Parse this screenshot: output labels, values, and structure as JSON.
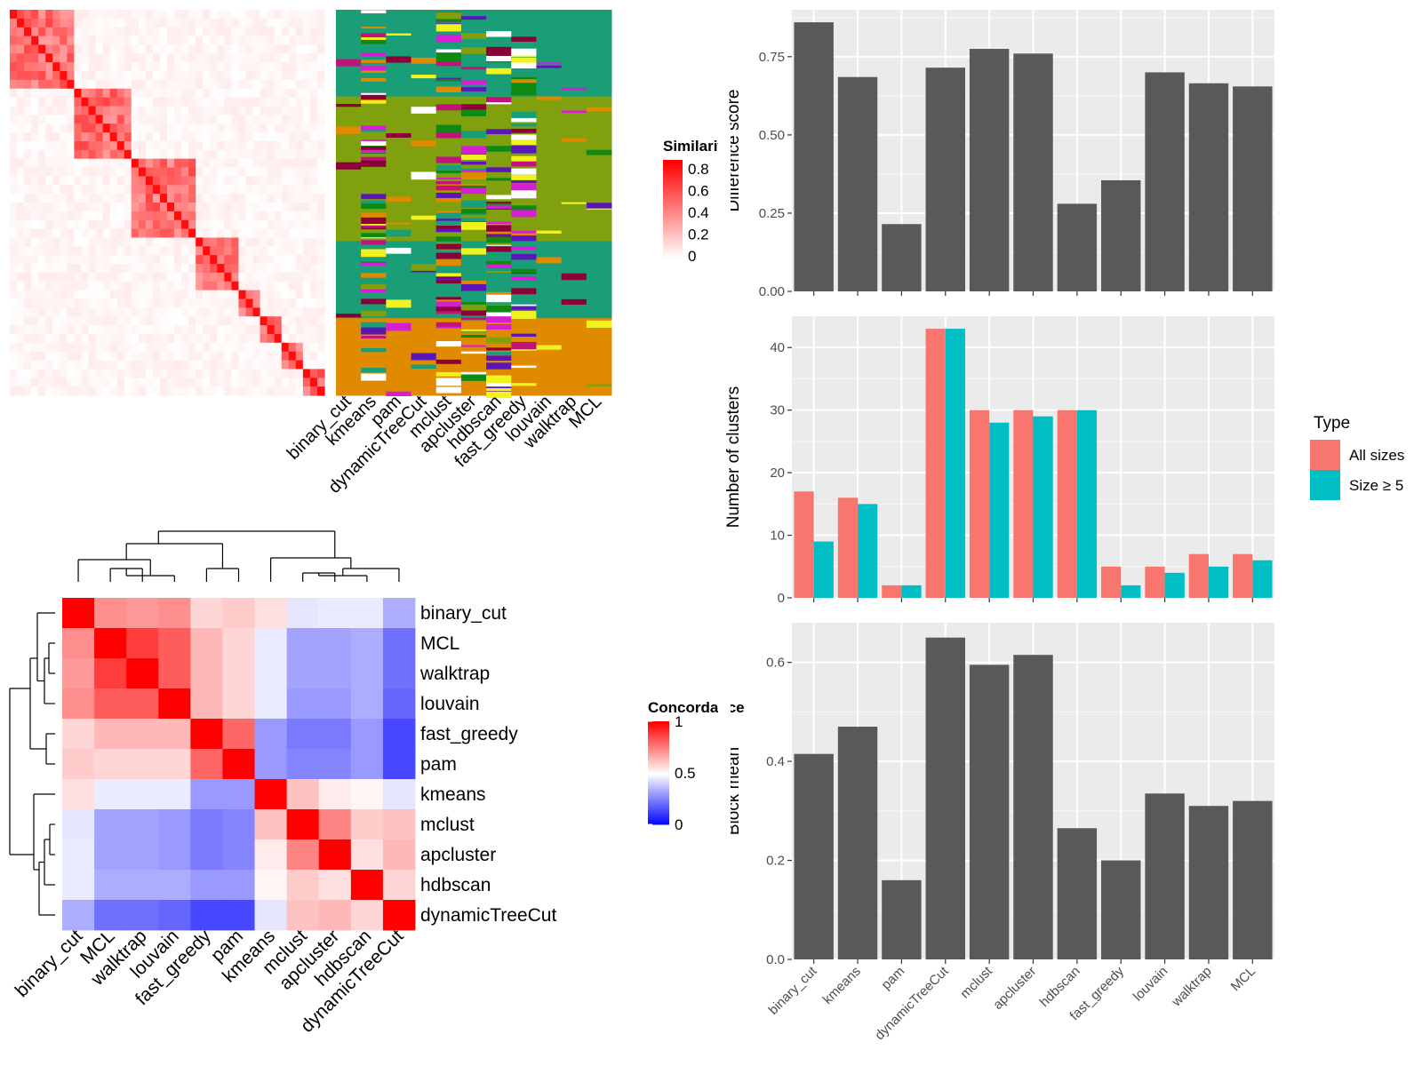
{
  "chart_data": [
    {
      "type": "heatmap",
      "legend_title": "Similarity",
      "legend_ticks": [
        "0",
        "0.2",
        "0.4",
        "0.6",
        "0.8"
      ],
      "columns": [
        "binary_cut",
        "kmeans",
        "pam",
        "dynamicTreeCut",
        "mclust",
        "apcluster",
        "hdbscan",
        "fast_greedy",
        "louvain",
        "walktrap",
        "MCL"
      ]
    },
    {
      "type": "heatmap",
      "legend_title": "Concordance",
      "legend_ticks": [
        "0",
        "0.5",
        "1"
      ],
      "rows": [
        "binary_cut",
        "MCL",
        "walktrap",
        "louvain",
        "fast_greedy",
        "pam",
        "kmeans",
        "mclust",
        "apcluster",
        "hdbscan",
        "dynamicTreeCut"
      ],
      "columns": [
        "binary_cut",
        "MCL",
        "walktrap",
        "louvain",
        "fast_greedy",
        "pam",
        "kmeans",
        "mclust",
        "apcluster",
        "hdbscan",
        "dynamicTreeCut"
      ],
      "values": [
        [
          1.0,
          0.72,
          0.7,
          0.72,
          0.58,
          0.6,
          0.56,
          0.45,
          0.46,
          0.46,
          0.34
        ],
        [
          0.72,
          1.0,
          0.88,
          0.82,
          0.64,
          0.58,
          0.46,
          0.32,
          0.32,
          0.34,
          0.22
        ],
        [
          0.7,
          0.88,
          1.0,
          0.82,
          0.64,
          0.58,
          0.46,
          0.32,
          0.32,
          0.34,
          0.22
        ],
        [
          0.72,
          0.82,
          0.82,
          1.0,
          0.64,
          0.58,
          0.46,
          0.3,
          0.3,
          0.34,
          0.2
        ],
        [
          0.58,
          0.64,
          0.64,
          0.64,
          1.0,
          0.8,
          0.3,
          0.24,
          0.24,
          0.3,
          0.14
        ],
        [
          0.6,
          0.58,
          0.58,
          0.58,
          0.8,
          1.0,
          0.3,
          0.26,
          0.26,
          0.3,
          0.14
        ],
        [
          0.56,
          0.46,
          0.46,
          0.46,
          0.3,
          0.3,
          1.0,
          0.62,
          0.54,
          0.52,
          0.45
        ],
        [
          0.45,
          0.32,
          0.32,
          0.3,
          0.24,
          0.26,
          0.62,
          1.0,
          0.74,
          0.6,
          0.62
        ],
        [
          0.46,
          0.32,
          0.32,
          0.3,
          0.24,
          0.26,
          0.54,
          0.74,
          1.0,
          0.56,
          0.64
        ],
        [
          0.46,
          0.34,
          0.34,
          0.34,
          0.3,
          0.3,
          0.52,
          0.6,
          0.56,
          1.0,
          0.58
        ],
        [
          0.34,
          0.22,
          0.22,
          0.2,
          0.14,
          0.14,
          0.45,
          0.62,
          0.64,
          0.58,
          1.0
        ]
      ]
    },
    {
      "type": "bar",
      "ylabel": "Difference score",
      "categories": [
        "binary_cut",
        "kmeans",
        "pam",
        "dynamicTreeCut",
        "mclust",
        "apcluster",
        "hdbscan",
        "fast_greedy",
        "louvain",
        "walktrap",
        "MCL"
      ],
      "values": [
        0.86,
        0.685,
        0.215,
        0.715,
        0.775,
        0.76,
        0.28,
        0.355,
        0.7,
        0.665,
        0.655
      ],
      "ylim": [
        0,
        0.9
      ],
      "yticks": [
        0,
        0.25,
        0.5,
        0.75
      ],
      "ytick_labels": [
        "0.00",
        "0.25",
        "0.50",
        "0.75"
      ],
      "bar_color": "#595959"
    },
    {
      "type": "bar",
      "ylabel": "Number of clusters",
      "categories": [
        "binary_cut",
        "kmeans",
        "pam",
        "dynamicTreeCut",
        "mclust",
        "apcluster",
        "hdbscan",
        "fast_greedy",
        "louvain",
        "walktrap",
        "MCL"
      ],
      "series": [
        {
          "name": "All sizes",
          "color": "#F8766D",
          "values": [
            17,
            16,
            2,
            43,
            30,
            30,
            30,
            5,
            5,
            7,
            7
          ]
        },
        {
          "name": "Size ≥ 5",
          "color": "#00BFC4",
          "values": [
            9,
            15,
            2,
            43,
            28,
            29,
            30,
            2,
            4,
            5,
            6
          ]
        }
      ],
      "legend_title": "Type",
      "legend_position": "right",
      "ylim": [
        0,
        45
      ],
      "yticks": [
        0,
        10,
        20,
        30,
        40
      ],
      "ytick_labels": [
        "0",
        "10",
        "20",
        "30",
        "40"
      ]
    },
    {
      "type": "bar",
      "ylabel": "Block mean",
      "categories": [
        "binary_cut",
        "kmeans",
        "pam",
        "dynamicTreeCut",
        "mclust",
        "apcluster",
        "hdbscan",
        "fast_greedy",
        "louvain",
        "walktrap",
        "MCL"
      ],
      "values": [
        0.415,
        0.47,
        0.16,
        0.65,
        0.595,
        0.615,
        0.265,
        0.2,
        0.335,
        0.31,
        0.32
      ],
      "ylim": [
        0,
        0.68
      ],
      "yticks": [
        0,
        0.2,
        0.4,
        0.6
      ],
      "ytick_labels": [
        "0.0",
        "0.2",
        "0.4",
        "0.6"
      ],
      "bar_color": "#595959"
    }
  ]
}
